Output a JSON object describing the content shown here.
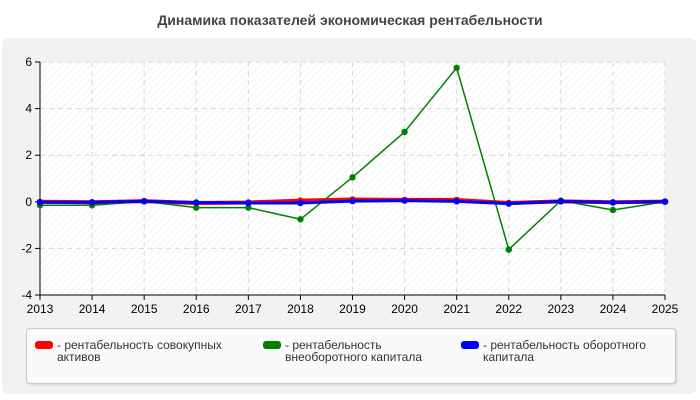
{
  "title": "Динамика показателей экономическая рентабельности",
  "chart_data": {
    "type": "line",
    "x": [
      2013,
      2014,
      2015,
      2016,
      2017,
      2018,
      2019,
      2020,
      2021,
      2022,
      2023,
      2024,
      2025
    ],
    "ylim": [
      -4,
      6
    ],
    "yticks": [
      -4,
      -2,
      0,
      2,
      4,
      6
    ],
    "grid": true,
    "legend_position": "bottom",
    "series": [
      {
        "name": "- рентабельность совокупных активов",
        "color": "#ff0000",
        "values": [
          0.0,
          -0.02,
          0.03,
          -0.05,
          -0.03,
          0.05,
          0.1,
          0.08,
          0.08,
          -0.05,
          0.02,
          -0.02,
          0.01
        ]
      },
      {
        "name": "- рентабельность внеоборотного капитала",
        "color": "#008000",
        "values": [
          -0.15,
          -0.15,
          0.02,
          -0.25,
          -0.25,
          -0.75,
          1.05,
          3.0,
          5.75,
          -2.05,
          0.05,
          -0.35,
          0.0
        ]
      },
      {
        "name": "- рентабельность оборотного капитала",
        "color": "#0000ff",
        "values": [
          -0.02,
          -0.02,
          0.02,
          -0.03,
          -0.05,
          -0.05,
          0.03,
          0.05,
          0.02,
          -0.08,
          0.02,
          -0.03,
          0.01
        ]
      }
    ]
  }
}
